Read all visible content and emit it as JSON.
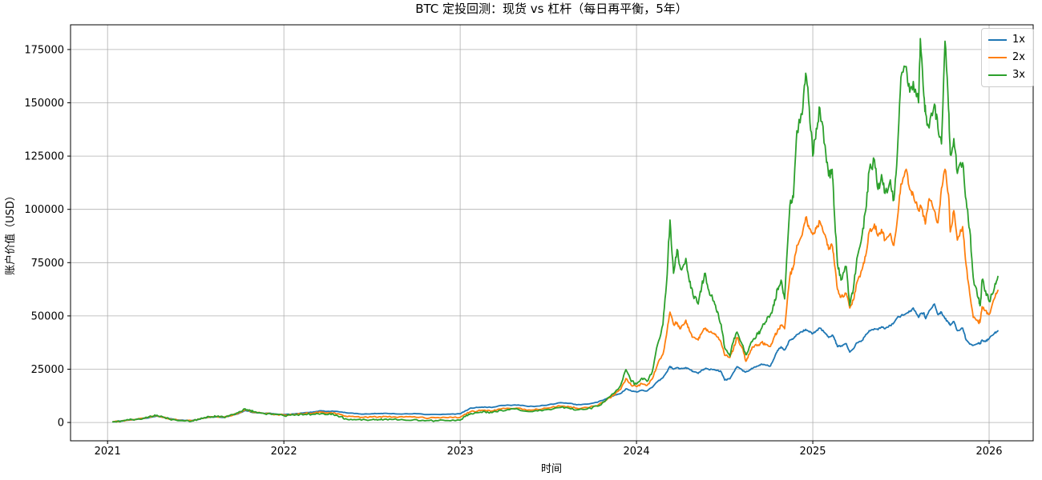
{
  "title": "BTC 定投回测：现货 vs 杠杆（每日再平衡，5年）",
  "legend": {
    "items": [
      "1x",
      "2x",
      "3x"
    ]
  },
  "colors": {
    "spine": "#000000",
    "grid": "#b0b0b0",
    "background": "#ffffff"
  },
  "chart_data": {
    "type": "line",
    "title": "BTC 定投回测：现货 vs 杠杆（每日再平衡，5年）",
    "xlabel": "时间",
    "ylabel": "账户价值（USD）",
    "grid": true,
    "legend_position": "upper right",
    "x_unit": "fractional year",
    "xlim": [
      2020.79,
      2026.25
    ],
    "ylim": [
      -8600,
      186600
    ],
    "x_ticks": [
      2021,
      2022,
      2023,
      2024,
      2025,
      2026
    ],
    "x_tick_labels": [
      "2021",
      "2022",
      "2023",
      "2024",
      "2025",
      "2026"
    ],
    "y_ticks": [
      0,
      25000,
      50000,
      75000,
      100000,
      125000,
      150000,
      175000
    ],
    "y_tick_labels": [
      "0",
      "25000",
      "50000",
      "75000",
      "100000",
      "125000",
      "150000",
      "175000"
    ],
    "x": [
      2021.03,
      2021.08,
      2021.12,
      2021.17,
      2021.21,
      2021.25,
      2021.28,
      2021.32,
      2021.35,
      2021.41,
      2021.48,
      2021.52,
      2021.55,
      2021.59,
      2021.62,
      2021.66,
      2021.69,
      2021.74,
      2021.78,
      2021.81,
      2021.83,
      2021.88,
      2021.93,
      2022.0,
      2022.06,
      2022.12,
      2022.17,
      2022.21,
      2022.25,
      2022.28,
      2022.32,
      2022.35,
      2022.4,
      2022.44,
      2022.5,
      2022.54,
      2022.57,
      2022.62,
      2022.68,
      2022.74,
      2022.8,
      2022.86,
      2022.93,
      2023.0,
      2023.03,
      2023.06,
      2023.1,
      2023.14,
      2023.18,
      2023.22,
      2023.28,
      2023.33,
      2023.39,
      2023.44,
      2023.5,
      2023.57,
      2023.62,
      2023.66,
      2023.72,
      2023.78,
      2023.83,
      2023.87,
      2023.91,
      2023.94,
      2023.97,
      2024.0,
      2024.03,
      2024.06,
      2024.09,
      2024.12,
      2024.15,
      2024.17,
      2024.19,
      2024.21,
      2024.23,
      2024.25,
      2024.28,
      2024.3,
      2024.32,
      2024.35,
      2024.37,
      2024.39,
      2024.41,
      2024.44,
      2024.46,
      2024.48,
      2024.5,
      2024.53,
      2024.55,
      2024.57,
      2024.6,
      2024.62,
      2024.64,
      2024.66,
      2024.69,
      2024.71,
      2024.73,
      2024.76,
      2024.78,
      2024.8,
      2024.82,
      2024.84,
      2024.87,
      2024.89,
      2024.91,
      2024.94,
      2024.96,
      2024.98,
      2025.0,
      2025.02,
      2025.04,
      2025.07,
      2025.09,
      2025.11,
      2025.12,
      2025.14,
      2025.16,
      2025.19,
      2025.21,
      2025.23,
      2025.25,
      2025.28,
      2025.3,
      2025.32,
      2025.35,
      2025.37,
      2025.39,
      2025.41,
      2025.44,
      2025.46,
      2025.48,
      2025.5,
      2025.53,
      2025.55,
      2025.57,
      2025.6,
      2025.61,
      2025.63,
      2025.64,
      2025.66,
      2025.69,
      2025.71,
      2025.73,
      2025.75,
      2025.77,
      2025.78,
      2025.8,
      2025.82,
      2025.85,
      2025.87,
      2025.89,
      2025.91,
      2025.94,
      2025.95,
      2025.96,
      2025.98,
      2026.0,
      2026.03,
      2026.05
    ],
    "series": [
      {
        "name": "1x",
        "color": "#1f77b4",
        "values": [
          300,
          700,
          1100,
          1500,
          1900,
          2500,
          3000,
          2400,
          1800,
          1100,
          900,
          1500,
          2100,
          2500,
          2600,
          2400,
          3000,
          4000,
          5600,
          5000,
          4600,
          4400,
          4200,
          3700,
          4000,
          4600,
          5000,
          5500,
          5200,
          5300,
          4900,
          4600,
          4200,
          3900,
          4100,
          4200,
          4300,
          4200,
          4000,
          4200,
          3700,
          3800,
          3900,
          4100,
          5500,
          6800,
          7000,
          7300,
          7000,
          7800,
          8100,
          8200,
          7500,
          7700,
          8300,
          9300,
          9000,
          8300,
          8600,
          9500,
          11200,
          12500,
          13600,
          15800,
          14800,
          14300,
          15200,
          14800,
          16500,
          19200,
          21000,
          23500,
          26300,
          25000,
          25800,
          25200,
          25800,
          25000,
          24000,
          23000,
          24500,
          25300,
          24800,
          24900,
          24500,
          23800,
          19900,
          20500,
          23500,
          26200,
          24500,
          23700,
          24500,
          25500,
          26500,
          27400,
          27000,
          26500,
          30000,
          33800,
          35500,
          34000,
          38700,
          39500,
          41200,
          42500,
          43700,
          42500,
          41800,
          43000,
          44300,
          42000,
          39900,
          41000,
          40000,
          35600,
          36000,
          37000,
          33000,
          34500,
          37400,
          38500,
          41200,
          43100,
          44000,
          43500,
          44900,
          44000,
          45500,
          46800,
          49300,
          50000,
          51200,
          52000,
          53700,
          49300,
          51000,
          51500,
          48700,
          52400,
          55600,
          50600,
          51800,
          48700,
          47000,
          45600,
          47400,
          43100,
          44300,
          38700,
          36800,
          36200,
          37400,
          37000,
          38700,
          38000,
          39300,
          41800,
          43000
        ]
      },
      {
        "name": "2x",
        "color": "#ff7f0e",
        "values": [
          300,
          720,
          1150,
          1560,
          2000,
          2650,
          3200,
          2400,
          1700,
          1000,
          800,
          1500,
          2200,
          2600,
          2700,
          2400,
          3100,
          4300,
          6000,
          5300,
          4800,
          4400,
          4000,
          3500,
          3700,
          4200,
          4500,
          4800,
          4400,
          4500,
          3800,
          3000,
          2700,
          2400,
          2600,
          2700,
          2800,
          2600,
          2500,
          2700,
          2100,
          2200,
          2250,
          2400,
          3900,
          5100,
          5400,
          5800,
          5400,
          6300,
          6600,
          6700,
          5900,
          6100,
          6800,
          7700,
          7300,
          6700,
          7000,
          8000,
          10500,
          12800,
          15500,
          20600,
          17500,
          16900,
          18200,
          17400,
          20500,
          27400,
          32000,
          41000,
          51800,
          46000,
          46900,
          44000,
          48000,
          43000,
          40000,
          38700,
          42000,
          44300,
          42500,
          41800,
          40000,
          37500,
          31500,
          30500,
          34500,
          39900,
          35000,
          28700,
          32000,
          35500,
          36500,
          37500,
          36500,
          35700,
          40000,
          43200,
          45500,
          44000,
          68700,
          73200,
          83100,
          88000,
          96200,
          91000,
          88200,
          91000,
          94400,
          88000,
          81200,
          83000,
          76900,
          62500,
          58700,
          60600,
          53700,
          57400,
          65600,
          71800,
          78100,
          89400,
          93100,
          87500,
          90600,
          85600,
          88700,
          83100,
          95600,
          111900,
          118800,
          109400,
          106900,
          99400,
          102000,
          97000,
          93800,
          105000,
          99400,
          93700,
          110000,
          118800,
          106900,
          89400,
          99400,
          85600,
          91900,
          73700,
          60600,
          49300,
          46800,
          48000,
          54300,
          52500,
          50600,
          58100,
          62000
        ]
      },
      {
        "name": "3x",
        "color": "#2ca02c",
        "values": [
          300,
          750,
          1200,
          1650,
          2100,
          2800,
          3400,
          2400,
          1600,
          900,
          700,
          1600,
          2300,
          2700,
          2800,
          2400,
          3200,
          4600,
          6400,
          5600,
          5000,
          4400,
          3800,
          3200,
          3400,
          3800,
          3900,
          4100,
          3700,
          3800,
          2700,
          1800,
          1400,
          1100,
          1300,
          1400,
          1500,
          1400,
          1200,
          1400,
          800,
          900,
          950,
          1100,
          2800,
          4200,
          4600,
          5100,
          4600,
          5700,
          6000,
          6100,
          5100,
          5400,
          6200,
          7000,
          6600,
          5900,
          6300,
          7600,
          10800,
          13500,
          17400,
          24800,
          19200,
          18000,
          20800,
          19300,
          24000,
          36800,
          46000,
          65000,
          95000,
          70000,
          81200,
          72000,
          77000,
          66000,
          60000,
          55600,
          64000,
          70000,
          62000,
          56800,
          52000,
          46000,
          35000,
          31200,
          38000,
          42400,
          36500,
          31800,
          35500,
          38700,
          41500,
          44300,
          47000,
          50700,
          55000,
          63000,
          66800,
          58000,
          101900,
          105600,
          136900,
          144500,
          163900,
          148000,
          125000,
          138000,
          147600,
          130000,
          115700,
          118800,
          101900,
          74400,
          66800,
          73200,
          54900,
          62400,
          76900,
          88100,
          99400,
          118100,
          123200,
          109400,
          116300,
          107500,
          113800,
          104400,
          126900,
          162000,
          167000,
          155000,
          160000,
          150000,
          180100,
          153200,
          145000,
          138200,
          149400,
          138000,
          130700,
          178900,
          147000,
          125700,
          133200,
          116900,
          121900,
          104400,
          90600,
          68100,
          58100,
          54900,
          66800,
          61800,
          56800,
          63100,
          68500
        ]
      }
    ]
  }
}
